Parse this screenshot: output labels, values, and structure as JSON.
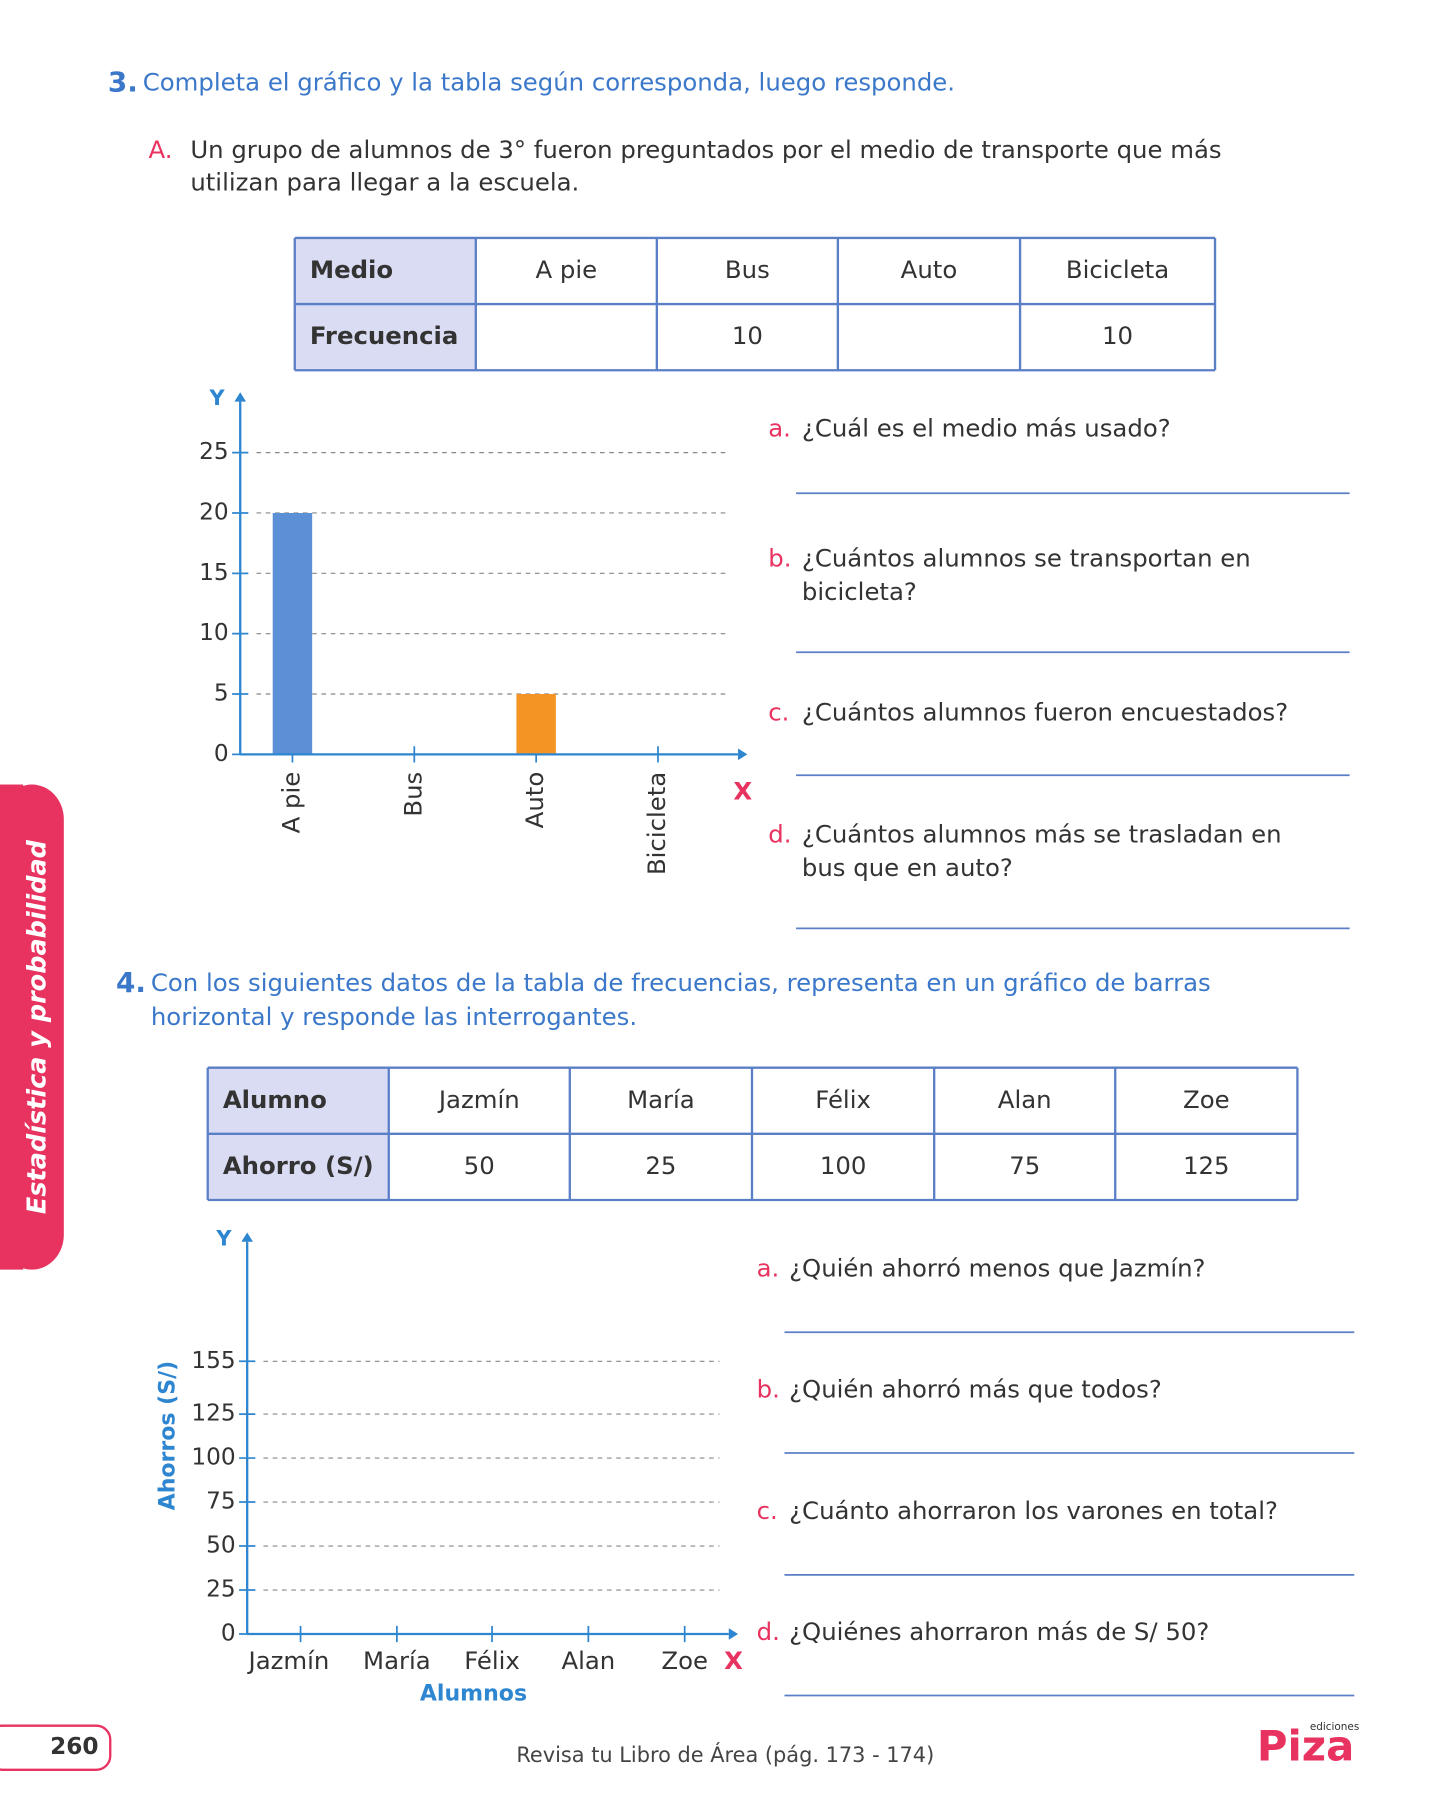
{
  "exercise3": {
    "number": "3.",
    "instruction": "Completa el gráfico y la tabla según corresponda, luego responde.",
    "part": "A.",
    "statement_lines": [
      "Un grupo de alumnos de 3° fueron preguntados por el medio de transporte que más",
      "utilizan para llegar a la escuela."
    ],
    "table": {
      "rows": [
        [
          "Medio",
          "A pie",
          "Bus",
          "Auto",
          "Bicicleta"
        ],
        [
          "Frecuencia",
          null,
          10,
          null,
          10
        ]
      ]
    },
    "questions": [
      {
        "letter": "a.",
        "lines": [
          "¿Cuál es el medio más usado?"
        ]
      },
      {
        "letter": "b.",
        "lines": [
          "¿Cuántos alumnos se transportan en",
          "bicicleta?"
        ]
      },
      {
        "letter": "c.",
        "lines": [
          "¿Cuántos alumnos fueron encuestados?"
        ]
      },
      {
        "letter": "d.",
        "lines": [
          "¿Cuántos alumnos más se trasladan en",
          "bus que en auto?"
        ]
      }
    ]
  },
  "exercise4": {
    "number": "4.",
    "instruction_lines": [
      "Con los siguientes datos de la tabla de frecuencias, representa en un gráfico de barras",
      "horizontal y responde las interrogantes."
    ],
    "table": {
      "rows": [
        [
          "Alumno",
          "Jazmín",
          "María",
          "Félix",
          "Alan",
          "Zoe"
        ],
        [
          "Ahorro (S/)",
          50,
          25,
          100,
          75,
          125
        ]
      ]
    },
    "questions": [
      {
        "letter": "a.",
        "lines": [
          "¿Quién ahorró menos que Jazmín?"
        ]
      },
      {
        "letter": "b.",
        "lines": [
          "¿Quién ahorró más que todos?"
        ]
      },
      {
        "letter": "c.",
        "lines": [
          "¿Cuánto ahorraron los varones en total?"
        ]
      },
      {
        "letter": "d.",
        "lines": [
          "¿Quiénes ahorraron más de S/ 50?"
        ]
      }
    ]
  },
  "chart_data": [
    {
      "type": "bar",
      "x_label": "X",
      "y_label": "Y",
      "categories": [
        "A pie",
        "Bus",
        "Auto",
        "Bicicleta"
      ],
      "values": [
        20,
        null,
        5,
        null
      ],
      "colors": [
        "#5b8fd6",
        null,
        "#f39425",
        null
      ],
      "ylim": [
        0,
        25
      ],
      "yticks": [
        0,
        5,
        10,
        15,
        20,
        25
      ],
      "grid": true
    },
    {
      "type": "bar",
      "x_label": "X",
      "y_label": "Y",
      "x_title": "Alumnos",
      "y_title": "Ahorros (S/)",
      "categories": [
        "Jazmín",
        "María",
        "Félix",
        "Alan",
        "Zoe"
      ],
      "ylim": [
        0,
        155
      ],
      "yticks": [
        0,
        25,
        50,
        75,
        100,
        125,
        155
      ],
      "grid": true
    }
  ],
  "side_tab": "Estadística y probabilidad",
  "page_number": "260",
  "footer": "Revisa tu Libro de Área (pág. 173 - 174)",
  "logo": {
    "name": "Piza",
    "tag": "ediciones"
  }
}
